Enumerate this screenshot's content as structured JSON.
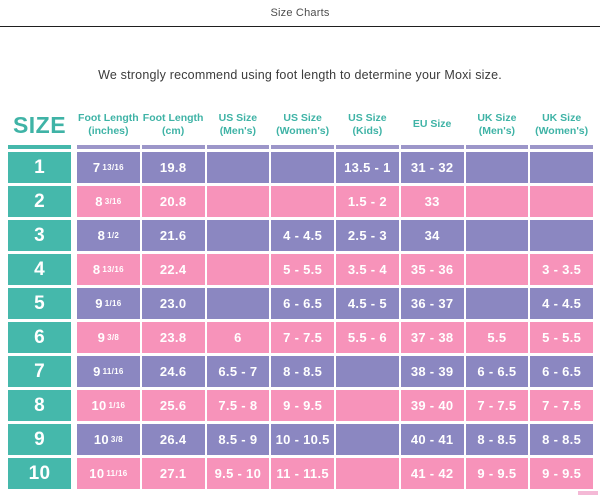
{
  "page": {
    "title": "Size Charts",
    "intro": "We strongly recommend using foot length to determine your Moxi size."
  },
  "colors": {
    "teal": "#45b8ab",
    "purple": "#8b87c1",
    "pink": "#f793ba",
    "underline": "#9c96c9",
    "header_text": "#3fb3a6"
  },
  "table": {
    "size_header": "SIZE",
    "columns": [
      {
        "key": "inches",
        "label": "Foot Length\n(inches)"
      },
      {
        "key": "cm",
        "label": "Foot Length\n(cm)"
      },
      {
        "key": "us_mens",
        "label": "US Size\n(Men's)"
      },
      {
        "key": "us_womens",
        "label": "US Size\n(Women's)"
      },
      {
        "key": "us_kids",
        "label": "US Size\n(Kids)"
      },
      {
        "key": "eu",
        "label": "EU Size"
      },
      {
        "key": "uk_mens",
        "label": "UK Size\n(Men's)"
      },
      {
        "key": "uk_womens",
        "label": "UK Size\n(Women's)"
      }
    ],
    "rows": [
      {
        "size": "1",
        "inches": {
          "whole": "7",
          "frac": "13/16"
        },
        "cm": "19.8",
        "us_mens": "",
        "us_womens": "",
        "us_kids": "13.5 - 1",
        "eu": "31 - 32",
        "uk_mens": "",
        "uk_womens": ""
      },
      {
        "size": "2",
        "inches": {
          "whole": "8",
          "frac": "3/16"
        },
        "cm": "20.8",
        "us_mens": "",
        "us_womens": "",
        "us_kids": "1.5 - 2",
        "eu": "33",
        "uk_mens": "",
        "uk_womens": ""
      },
      {
        "size": "3",
        "inches": {
          "whole": "8",
          "frac": "1/2"
        },
        "cm": "21.6",
        "us_mens": "",
        "us_womens": "4 - 4.5",
        "us_kids": "2.5 - 3",
        "eu": "34",
        "uk_mens": "",
        "uk_womens": ""
      },
      {
        "size": "4",
        "inches": {
          "whole": "8",
          "frac": "13/16"
        },
        "cm": "22.4",
        "us_mens": "",
        "us_womens": "5 - 5.5",
        "us_kids": "3.5 - 4",
        "eu": "35 - 36",
        "uk_mens": "",
        "uk_womens": "3 - 3.5"
      },
      {
        "size": "5",
        "inches": {
          "whole": "9",
          "frac": "1/16"
        },
        "cm": "23.0",
        "us_mens": "",
        "us_womens": "6 - 6.5",
        "us_kids": "4.5 - 5",
        "eu": "36 - 37",
        "uk_mens": "",
        "uk_womens": "4 - 4.5"
      },
      {
        "size": "6",
        "inches": {
          "whole": "9",
          "frac": "3/8"
        },
        "cm": "23.8",
        "us_mens": "6",
        "us_womens": "7 - 7.5",
        "us_kids": "5.5 - 6",
        "eu": "37 - 38",
        "uk_mens": "5.5",
        "uk_womens": "5 - 5.5"
      },
      {
        "size": "7",
        "inches": {
          "whole": "9",
          "frac": "11/16"
        },
        "cm": "24.6",
        "us_mens": "6.5 - 7",
        "us_womens": "8 - 8.5",
        "us_kids": "",
        "eu": "38 - 39",
        "uk_mens": "6 - 6.5",
        "uk_womens": "6 - 6.5"
      },
      {
        "size": "8",
        "inches": {
          "whole": "10",
          "frac": "1/16"
        },
        "cm": "25.6",
        "us_mens": "7.5 - 8",
        "us_womens": "9 - 9.5",
        "us_kids": "",
        "eu": "39 - 40",
        "uk_mens": "7 - 7.5",
        "uk_womens": "7 - 7.5"
      },
      {
        "size": "9",
        "inches": {
          "whole": "10",
          "frac": "3/8"
        },
        "cm": "26.4",
        "us_mens": "8.5 - 9",
        "us_womens": "10 - 10.5",
        "us_kids": "",
        "eu": "40 - 41",
        "uk_mens": "8 - 8.5",
        "uk_womens": "8 - 8.5"
      },
      {
        "size": "10",
        "inches": {
          "whole": "10",
          "frac": "11/16"
        },
        "cm": "27.1",
        "us_mens": "9.5 - 10",
        "us_womens": "11 - 11.5",
        "us_kids": "",
        "eu": "41 - 42",
        "uk_mens": "9 - 9.5",
        "uk_womens": "9 - 9.5"
      }
    ]
  }
}
